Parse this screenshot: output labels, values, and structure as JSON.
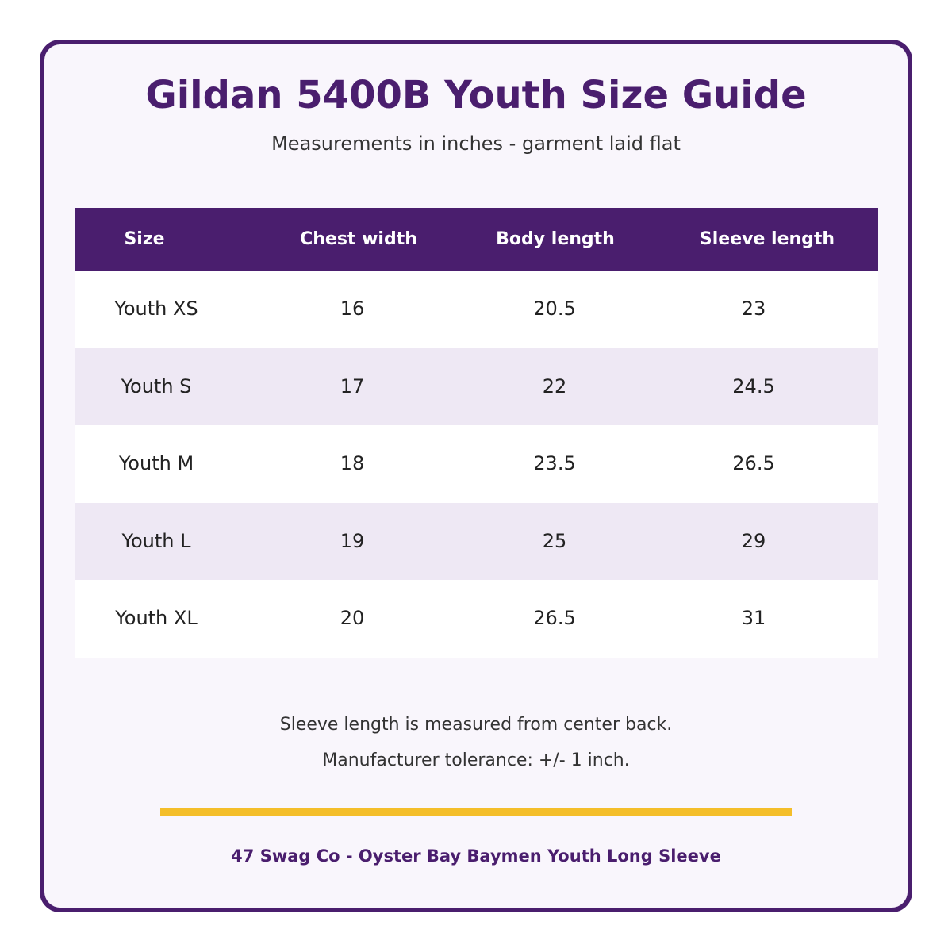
{
  "title": "Gildan 5400B Youth Size Guide",
  "subtitle": "Measurements in inches - garment laid flat",
  "colors": {
    "primary": "#4a1e6e",
    "row_alt": "#eee8f4",
    "accent": "#f4be2a",
    "background": "#f9f6fc"
  },
  "table": {
    "headers": [
      "Size",
      "Chest width",
      "Body length",
      "Sleeve length"
    ],
    "rows": [
      [
        "Youth XS",
        "16",
        "20.5",
        "23"
      ],
      [
        "Youth S",
        "17",
        "22",
        "24.5"
      ],
      [
        "Youth M",
        "18",
        "23.5",
        "26.5"
      ],
      [
        "Youth L",
        "19",
        "25",
        "29"
      ],
      [
        "Youth XL",
        "20",
        "26.5",
        "31"
      ]
    ]
  },
  "notes": [
    "Sleeve length is measured from center back.",
    "Manufacturer tolerance: +/- 1 inch."
  ],
  "footer": "47 Swag Co - Oyster Bay Baymen Youth Long Sleeve"
}
